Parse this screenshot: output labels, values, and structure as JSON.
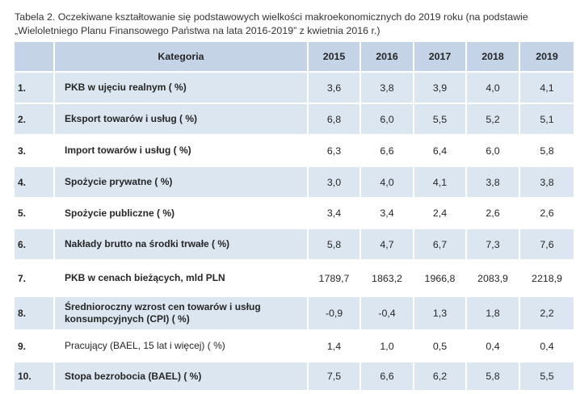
{
  "caption": {
    "line1": "Tabela 2. Oczekiwane kształtowanie się podstawowych wielkości makroekonomicznych do 2019 roku (na podstawie",
    "line2": "„Wieloletniego Planu Finansowego Państwa na lata 2016-2019” z kwietnia 2016 r.)"
  },
  "table": {
    "header": {
      "category": "Kategoria",
      "years": [
        "2015",
        "2016",
        "2017",
        "2018",
        "2019"
      ]
    },
    "rows": [
      {
        "num": "1.",
        "label": "PKB w ujęciu realnym ( %)",
        "values": [
          "3,6",
          "3,8",
          "3,9",
          "4,0",
          "4,1"
        ]
      },
      {
        "num": "2.",
        "label": "Eksport towarów i usług ( %)",
        "values": [
          "6,8",
          "6,0",
          "5,5",
          "5,2",
          "5,1"
        ]
      },
      {
        "num": "3.",
        "label": "Import towarów i usług ( %)",
        "values": [
          "6,3",
          "6,6",
          "6,4",
          "6,0",
          "5,8"
        ]
      },
      {
        "num": "4.",
        "label": "Spożycie prywatne ( %)",
        "values": [
          "3,0",
          "4,0",
          "4,1",
          "3,8",
          "3,8"
        ]
      },
      {
        "num": "5.",
        "label": "Spożycie publiczne ( %)",
        "values": [
          "3,4",
          "3,4",
          "2,4",
          "2,6",
          "2,6"
        ]
      },
      {
        "num": "6.",
        "label": "Nakłady brutto na środki trwałe ( %)",
        "values": [
          "5,8",
          "4,7",
          "6,7",
          "7,3",
          "7,6"
        ]
      },
      {
        "num": "7.",
        "label": "PKB w cenach bieżących, mld PLN",
        "values": [
          "1789,7",
          "1863,2",
          "1966,8",
          "2083,9",
          "2218,9"
        ]
      },
      {
        "num": "8.",
        "label": "Średnioroczny wzrost cen towarów i usług konsumpcyjnych (CPI) ( %)",
        "values": [
          "-0,9",
          "-0,4",
          "1,3",
          "1,8",
          "2,2"
        ]
      },
      {
        "num": "9.",
        "label": "Pracujący (BAEL, 15 lat i więcej) ( %)",
        "values": [
          "1,4",
          "1,0",
          "0,5",
          "0,4",
          "0,4"
        ]
      },
      {
        "num": "10.",
        "label": "Stopa bezrobocia (BAEL) ( %)",
        "values": [
          "7,5",
          "6,6",
          "6,2",
          "5,8",
          "5,5"
        ]
      }
    ]
  }
}
